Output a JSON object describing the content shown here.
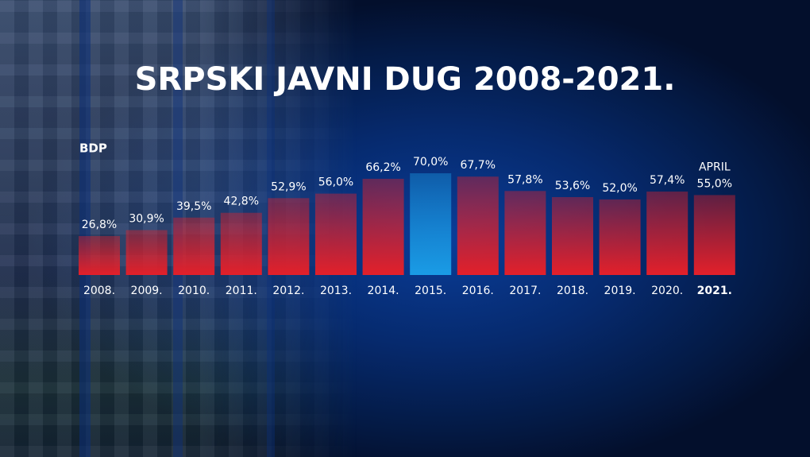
{
  "chart_data": {
    "type": "bar",
    "title": "SRPSKI JAVNI DUG 2008-2021.",
    "y_label": "BDP",
    "categories": [
      "2008.",
      "2009.",
      "2010.",
      "2011.",
      "2012.",
      "2013.",
      "2014.",
      "2015.",
      "2016.",
      "2017.",
      "2018.",
      "2019.",
      "2020.",
      "2021."
    ],
    "values": [
      26.8,
      30.9,
      39.5,
      42.8,
      52.9,
      56.0,
      66.2,
      70.0,
      67.7,
      57.8,
      53.6,
      52.0,
      57.4,
      55.0
    ],
    "value_labels": [
      "26,8%",
      "30,9%",
      "39,5%",
      "42,8%",
      "52,9%",
      "56,0%",
      "66,2%",
      "70,0%",
      "67,7%",
      "57,8%",
      "53,6%",
      "52,0%",
      "57,4%",
      "55,0%"
    ],
    "annotation": "APRIL",
    "colors": [
      "#e3202a",
      "#e3202a",
      "#e3202a",
      "#e3202a",
      "#e3202a",
      "#e3202a",
      "#e3202a",
      "#1a9ce6",
      "#e3202a",
      "#e3202a",
      "#e3202a",
      "#e3202a",
      "#e3202a",
      "#e3202a"
    ]
  }
}
